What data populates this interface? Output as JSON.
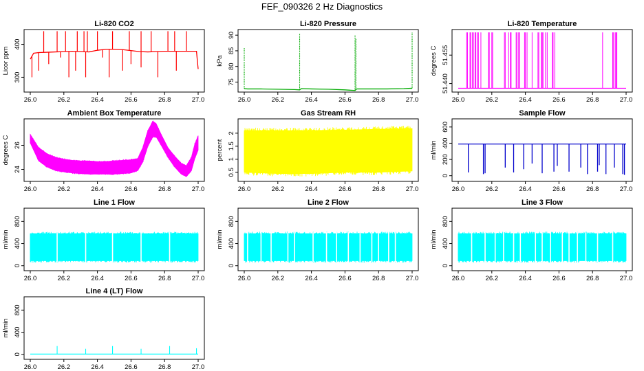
{
  "title": "FEF_090326  2 Hz Diagnostics",
  "colors": {
    "red": "#ff0000",
    "green": "#00aa00",
    "magenta": "#ff00ff",
    "yellow": "#ffff00",
    "blue": "#0000cc",
    "cyan": "#00ffff"
  },
  "chart_data": [
    {
      "type": "line",
      "title": "Li-820 CO2",
      "ylabel": "Licor ppm",
      "xlim": [
        26.0,
        27.0
      ],
      "xticks": [
        "26.0",
        "26.2",
        "26.4",
        "26.6",
        "26.8",
        "27.0"
      ],
      "ylim": [
        255,
        445
      ],
      "yticks": [
        300,
        400
      ],
      "color": "#ff0000",
      "x": [
        26.0,
        26.02,
        26.05,
        26.1,
        26.15,
        26.2,
        26.25,
        26.3,
        26.35,
        26.4,
        26.45,
        26.5,
        26.55,
        26.6,
        26.65,
        26.7,
        26.75,
        26.8,
        26.85,
        26.9,
        26.95,
        26.99,
        27.0
      ],
      "y": [
        355,
        373,
        375,
        376,
        377,
        378,
        379,
        378,
        377,
        382,
        385,
        385,
        384,
        381,
        378,
        377,
        378,
        379,
        379,
        379,
        379,
        379,
        325
      ],
      "spikes_up": [
        26.08,
        26.16,
        26.21,
        26.28,
        26.32,
        26.34,
        26.4,
        26.49,
        26.59,
        26.66,
        26.72,
        26.82,
        26.86,
        26.93
      ],
      "spikes_down": [
        26.01,
        26.05,
        26.11,
        26.18,
        26.23,
        26.27,
        26.33,
        26.43,
        26.47,
        26.55,
        26.6,
        26.66,
        26.76,
        26.87
      ]
    },
    {
      "type": "line",
      "title": "Li-820 Pressure",
      "ylabel": "kPa",
      "xlim": [
        26.0,
        27.0
      ],
      "xticks": [
        "26.0",
        "26.2",
        "26.4",
        "26.6",
        "26.8",
        "27.0"
      ],
      "ylim": [
        71.8,
        91.8
      ],
      "yticks": [
        75,
        80,
        85,
        90
      ],
      "color": "#00aa00",
      "x": [
        26.0,
        26.02,
        26.1,
        26.2,
        26.3,
        26.33,
        26.34,
        26.4,
        26.5,
        26.6,
        26.66,
        26.67,
        26.75,
        26.85,
        26.95,
        26.99,
        27.0
      ],
      "y": [
        72.9,
        72.8,
        72.8,
        72.7,
        72.6,
        72.5,
        72.9,
        72.8,
        72.7,
        72.5,
        72.3,
        72.8,
        72.8,
        72.8,
        72.9,
        73.0,
        73.0
      ],
      "spikes": [
        [
          26.0,
          86.0
        ],
        [
          26.33,
          90.5
        ],
        [
          26.66,
          90.0
        ],
        [
          26.665,
          89.0
        ],
        [
          27.0,
          90.8
        ]
      ]
    },
    {
      "type": "line",
      "title": "Li-820 Temperature",
      "ylabel": "degrees C",
      "xlim": [
        26.0,
        27.0
      ],
      "xticks": [
        "26.0",
        "26.2",
        "26.4",
        "26.6",
        "26.8",
        "27.0"
      ],
      "ylim": [
        51.4355,
        51.4685
      ],
      "yticks": [
        "51.440",
        "51.455"
      ],
      "color": "#ff00ff",
      "x": [
        26.0,
        27.0
      ],
      "y": [
        51.4375,
        51.4375
      ],
      "spikes_to": 51.467,
      "spikes": [
        26.05,
        26.055,
        26.07,
        26.075,
        26.085,
        26.09,
        26.1,
        26.105,
        26.115,
        26.12,
        26.135,
        26.18,
        26.185,
        26.2,
        26.205,
        26.275,
        26.28,
        26.3,
        26.31,
        26.315,
        26.345,
        26.35,
        26.36,
        26.365,
        26.395,
        26.4,
        26.41,
        26.44,
        26.475,
        26.48,
        26.495,
        26.5,
        26.505,
        26.52,
        26.53,
        26.56,
        26.565,
        26.575,
        26.86,
        26.92,
        26.925,
        26.935,
        26.94,
        26.945
      ]
    },
    {
      "type": "area",
      "title": "Ambient Box Temperature",
      "ylabel": "degrees C",
      "xlim": [
        26.0,
        27.0
      ],
      "xticks": [
        "26.0",
        "26.2",
        "26.4",
        "26.6",
        "26.8",
        "27.0"
      ],
      "ylim": [
        23.0,
        28.2
      ],
      "yticks": [
        24,
        26
      ],
      "color": "#ff00ff",
      "x": [
        26.0,
        26.05,
        26.1,
        26.15,
        26.2,
        26.25,
        26.3,
        26.35,
        26.4,
        26.45,
        26.5,
        26.55,
        26.6,
        26.64,
        26.67,
        26.7,
        26.73,
        26.75,
        26.78,
        26.82,
        26.86,
        26.9,
        26.93,
        26.96,
        26.98,
        27.0
      ],
      "y_upper": [
        26.9,
        25.8,
        25.3,
        25.0,
        24.85,
        24.75,
        24.7,
        24.7,
        24.65,
        24.65,
        24.7,
        24.75,
        24.8,
        24.9,
        25.8,
        27.2,
        28.0,
        27.8,
        26.9,
        25.8,
        25.1,
        24.5,
        24.3,
        25.0,
        26.1,
        26.8
      ],
      "y_lower": [
        26.2,
        24.7,
        24.2,
        23.9,
        23.8,
        23.7,
        23.65,
        23.6,
        23.6,
        23.6,
        23.6,
        23.65,
        23.7,
        23.9,
        24.6,
        25.9,
        26.7,
        26.7,
        26.0,
        25.0,
        24.2,
        23.6,
        23.4,
        23.9,
        24.9,
        25.6
      ]
    },
    {
      "type": "area",
      "title": "Gas Stream RH",
      "ylabel": "percent",
      "xlim": [
        26.0,
        27.0
      ],
      "xticks": [
        "26.0",
        "26.2",
        "26.4",
        "26.6",
        "26.8",
        "27.0"
      ],
      "ylim": [
        0.15,
        2.55
      ],
      "yticks": [
        0.5,
        1.0,
        1.5,
        2.0
      ],
      "color": "#ffff00",
      "x": [
        26.0,
        26.2,
        26.4,
        26.6,
        26.8,
        27.0
      ],
      "y_upper": [
        2.1,
        2.1,
        2.1,
        2.12,
        2.15,
        2.18
      ],
      "y_lower": [
        0.5,
        0.45,
        0.45,
        0.5,
        0.5,
        0.55
      ]
    },
    {
      "type": "line",
      "title": "Sample Flow",
      "ylabel": "ml/min",
      "xlim": [
        26.0,
        27.0
      ],
      "xticks": [
        "26.0",
        "26.2",
        "26.4",
        "26.6",
        "26.8",
        "27.0"
      ],
      "ylim": [
        -70,
        700
      ],
      "yticks": [
        0,
        200,
        400,
        600
      ],
      "color": "#0000cc",
      "x": [
        26.0,
        27.0
      ],
      "y": [
        390,
        390
      ],
      "dips": [
        [
          26.06,
          40
        ],
        [
          26.15,
          20
        ],
        [
          26.16,
          30
        ],
        [
          26.28,
          100
        ],
        [
          26.33,
          40
        ],
        [
          26.39,
          80
        ],
        [
          26.44,
          150
        ],
        [
          26.5,
          30
        ],
        [
          26.57,
          50
        ],
        [
          26.59,
          120
        ],
        [
          26.66,
          50
        ],
        [
          26.73,
          100
        ],
        [
          26.77,
          20
        ],
        [
          26.83,
          50
        ],
        [
          26.84,
          130
        ],
        [
          26.88,
          20
        ],
        [
          26.93,
          100
        ],
        [
          26.98,
          20
        ],
        [
          26.99,
          10
        ]
      ]
    },
    {
      "type": "area",
      "title": "Line 1 Flow",
      "ylabel": "ml/min",
      "xlim": [
        26.0,
        27.0
      ],
      "xticks": [
        "26.0",
        "26.2",
        "26.4",
        "26.6",
        "26.8",
        "27.0"
      ],
      "ylim": [
        -90,
        1040
      ],
      "yticks": [
        0,
        400,
        800
      ],
      "color": "#00ffff",
      "x": [
        26.0,
        27.0
      ],
      "y_upper": [
        580,
        580
      ],
      "y_lower": [
        90,
        90
      ],
      "gaps": [
        26.16,
        26.33,
        26.49,
        26.66,
        26.83
      ]
    },
    {
      "type": "area",
      "title": "Line 2 Flow",
      "ylabel": "ml/min",
      "xlim": [
        26.0,
        27.0
      ],
      "xticks": [
        "26.0",
        "26.2",
        "26.4",
        "26.6",
        "26.8",
        "27.0"
      ],
      "ylim": [
        -90,
        1040
      ],
      "yticks": [
        0,
        400,
        800
      ],
      "color": "#00ffff",
      "x": [
        26.0,
        27.0
      ],
      "y_upper": [
        580,
        580
      ],
      "y_lower": [
        90,
        90
      ],
      "gaps": [
        26.02,
        26.1,
        26.16,
        26.26,
        26.3,
        26.41,
        26.49,
        26.55,
        26.62,
        26.69,
        26.76,
        26.8,
        26.86,
        26.9
      ]
    },
    {
      "type": "area",
      "title": "Line 3 Flow",
      "ylabel": "ml/min",
      "xlim": [
        26.0,
        27.0
      ],
      "xticks": [
        "26.0",
        "26.2",
        "26.4",
        "26.6",
        "26.8",
        "27.0"
      ],
      "ylim": [
        -90,
        1040
      ],
      "yticks": [
        0,
        400,
        800
      ],
      "color": "#00ffff",
      "x": [
        26.0,
        27.0
      ],
      "y_upper": [
        580,
        580
      ],
      "y_lower": [
        90,
        90
      ],
      "gaps": [
        26.08,
        26.16,
        26.22,
        26.27,
        26.33,
        26.37,
        26.46,
        26.5,
        26.55,
        26.62,
        26.66,
        26.71,
        26.76,
        26.83,
        26.92
      ]
    },
    {
      "type": "line",
      "title": "Line 4 (LT) Flow",
      "ylabel": "ml/min",
      "xlim": [
        26.0,
        27.0
      ],
      "xticks": [
        "26.0",
        "26.2",
        "26.4",
        "26.6",
        "26.8",
        "27.0"
      ],
      "ylim": [
        -90,
        1040
      ],
      "yticks": [
        0,
        400,
        800
      ],
      "color": "#00ffff",
      "x": [
        26.0,
        27.0
      ],
      "y": [
        5,
        5
      ],
      "spikes": [
        [
          26.16,
          150
        ],
        [
          26.33,
          100
        ],
        [
          26.49,
          150
        ],
        [
          26.66,
          100
        ],
        [
          26.83,
          150
        ],
        [
          26.99,
          110
        ]
      ]
    }
  ]
}
